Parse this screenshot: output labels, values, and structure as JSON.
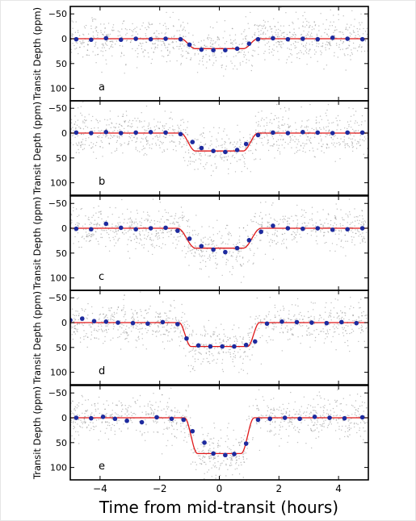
{
  "figure": {
    "xlabel": "Time from mid-transit (hours)",
    "ylabel": "Transit Depth (ppm)",
    "x_ticks": [
      -4,
      -2,
      0,
      2,
      4
    ],
    "x_tick_labels": [
      "−4",
      "−2",
      "0",
      "2",
      "4"
    ],
    "y_ticks": [
      -50,
      0,
      50,
      100
    ],
    "y_tick_labels": [
      "−50",
      "0",
      "50",
      "100"
    ],
    "colors": {
      "model": "#e0191a",
      "binned": "#1d2a9e",
      "raw": "#888888"
    }
  },
  "chart_data": [
    {
      "type": "scatter",
      "panel_label": "a",
      "xlim": [
        -5,
        5
      ],
      "ylim": [
        125,
        -65
      ],
      "y_inverted": true,
      "model_depth": 20,
      "series": [
        {
          "x": [
            -4.8,
            -4.3,
            -3.8,
            -3.3,
            -2.8,
            -2.3,
            -1.8,
            -1.3,
            -1.0,
            -0.6,
            -0.2,
            0.2,
            0.6,
            1.0,
            1.3,
            1.8,
            2.3,
            2.8,
            3.3,
            3.8,
            4.3,
            4.8
          ],
          "values": [
            1,
            2,
            -1,
            2,
            0,
            1,
            0,
            1,
            12,
            22,
            23,
            23,
            20,
            10,
            1,
            -1,
            1,
            0,
            1,
            -2,
            0,
            1
          ]
        }
      ]
    },
    {
      "type": "scatter",
      "panel_label": "b",
      "xlim": [
        -5,
        5
      ],
      "ylim": [
        125,
        -65
      ],
      "y_inverted": true,
      "model_depth": 36,
      "series": [
        {
          "x": [
            -4.8,
            -4.3,
            -3.8,
            -3.3,
            -2.8,
            -2.3,
            -1.8,
            -1.3,
            -0.9,
            -0.6,
            -0.2,
            0.2,
            0.6,
            0.9,
            1.3,
            1.8,
            2.3,
            2.8,
            3.3,
            3.8,
            4.3,
            4.8
          ],
          "values": [
            -1,
            0,
            -2,
            0,
            -1,
            -2,
            -1,
            2,
            18,
            30,
            36,
            38,
            34,
            22,
            4,
            -1,
            0,
            -2,
            -1,
            0,
            -1,
            -1
          ]
        }
      ]
    },
    {
      "type": "scatter",
      "panel_label": "c",
      "xlim": [
        -5,
        5
      ],
      "ylim": [
        125,
        -65
      ],
      "y_inverted": true,
      "model_depth": 40,
      "series": [
        {
          "x": [
            -4.8,
            -4.3,
            -3.8,
            -3.3,
            -2.8,
            -2.3,
            -1.8,
            -1.4,
            -1.0,
            -0.6,
            -0.2,
            0.2,
            0.6,
            1.0,
            1.4,
            1.8,
            2.3,
            2.8,
            3.3,
            3.8,
            4.3,
            4.8
          ],
          "values": [
            1,
            2,
            -9,
            -1,
            2,
            0,
            -1,
            5,
            21,
            36,
            43,
            48,
            40,
            24,
            7,
            -5,
            0,
            1,
            0,
            3,
            2,
            0
          ]
        }
      ]
    },
    {
      "type": "scatter",
      "panel_label": "d",
      "xlim": [
        -5,
        5
      ],
      "ylim": [
        125,
        -65
      ],
      "y_inverted": true,
      "model_depth": 48,
      "series": [
        {
          "x": [
            -5.0,
            -4.6,
            -4.2,
            -3.8,
            -3.4,
            -2.9,
            -2.4,
            -1.9,
            -1.4,
            -1.1,
            -0.7,
            -0.3,
            0.1,
            0.5,
            0.9,
            1.2,
            1.6,
            2.1,
            2.6,
            3.1,
            3.6,
            4.1,
            4.6
          ],
          "values": [
            -5,
            -8,
            -3,
            -2,
            0,
            1,
            2,
            -1,
            3,
            32,
            46,
            48,
            48,
            48,
            45,
            38,
            2,
            -2,
            -1,
            0,
            1,
            -1,
            1
          ]
        }
      ]
    },
    {
      "type": "scatter",
      "panel_label": "e",
      "xlim": [
        -5,
        5
      ],
      "ylim": [
        125,
        -65
      ],
      "y_inverted": true,
      "model_depth": 72,
      "series": [
        {
          "x": [
            -4.8,
            -4.3,
            -3.9,
            -3.5,
            -3.1,
            -2.6,
            -2.1,
            -1.6,
            -1.2,
            -0.9,
            -0.5,
            -0.2,
            0.2,
            0.5,
            0.9,
            1.3,
            1.7,
            2.2,
            2.7,
            3.2,
            3.7,
            4.2,
            4.8
          ],
          "values": [
            0,
            1,
            -2,
            2,
            6,
            9,
            -1,
            2,
            4,
            27,
            50,
            72,
            75,
            73,
            52,
            4,
            2,
            0,
            2,
            -2,
            0,
            1,
            -1
          ]
        }
      ]
    }
  ]
}
